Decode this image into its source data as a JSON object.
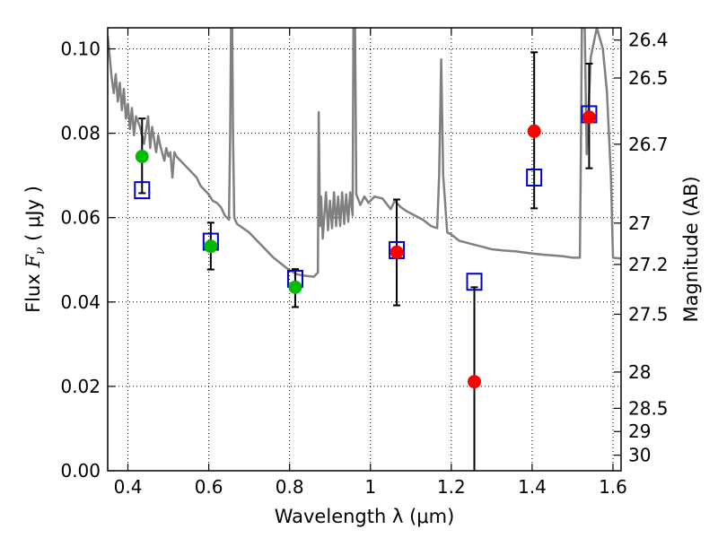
{
  "chart_data": {
    "type": "scatter",
    "title": "",
    "xlabel": "Wavelength  λ (μm)",
    "ylabel": "Flux  F_ν  ( μJy )",
    "ylabel_right": "Magnitude (AB)",
    "xlim": [
      0.35,
      1.62
    ],
    "ylim": [
      0.0,
      0.105
    ],
    "grid": true,
    "x_ticks": [
      0.4,
      0.6,
      0.8,
      1.0,
      1.2,
      1.4,
      1.6
    ],
    "x_tick_labels": [
      "0.4",
      "0.6",
      "0.8",
      "1",
      "1.2",
      "1.4",
      "1.6"
    ],
    "y_ticks": [
      0.0,
      0.02,
      0.04,
      0.06,
      0.08,
      0.1
    ],
    "y_tick_labels": [
      "0.00",
      "0.02",
      "0.04",
      "0.06",
      "0.08",
      "0.10"
    ],
    "right_ticks": [
      {
        "label": "26.4",
        "flux": 0.1021
      },
      {
        "label": "26.5",
        "flux": 0.0931
      },
      {
        "label": "26.7",
        "flux": 0.0774
      },
      {
        "label": "27",
        "flux": 0.0587
      },
      {
        "label": "27.2",
        "flux": 0.0489
      },
      {
        "label": "27.5",
        "flux": 0.0371
      },
      {
        "label": "28",
        "flux": 0.0234
      },
      {
        "label": "28.5",
        "flux": 0.0148
      },
      {
        "label": "29",
        "flux": 0.0093
      },
      {
        "label": "30",
        "flux": 0.0037
      }
    ],
    "series": [
      {
        "marker": "open-square",
        "color": "#0000cc",
        "points": [
          {
            "x": 0.435,
            "y": 0.0665
          },
          {
            "x": 0.605,
            "y": 0.0543
          },
          {
            "x": 0.814,
            "y": 0.0455
          },
          {
            "x": 1.065,
            "y": 0.0523
          },
          {
            "x": 1.257,
            "y": 0.0448
          },
          {
            "x": 1.405,
            "y": 0.0695
          },
          {
            "x": 1.541,
            "y": 0.0845
          }
        ]
      },
      {
        "marker": "filled-circle",
        "color": "#00bb00",
        "points": [
          {
            "x": 0.435,
            "y": 0.0745,
            "err_low": 0.0658,
            "err_high": 0.0835
          },
          {
            "x": 0.605,
            "y": 0.0532,
            "err_low": 0.0477,
            "err_high": 0.0588
          },
          {
            "x": 0.814,
            "y": 0.0435,
            "err_low": 0.0388,
            "err_high": 0.0478
          }
        ]
      },
      {
        "marker": "filled-circle",
        "color": "#ff0000",
        "points": [
          {
            "x": 1.065,
            "y": 0.0518,
            "err_low": 0.0392,
            "err_high": 0.0643
          },
          {
            "x": 1.257,
            "y": 0.0211,
            "err_low": 0.0,
            "err_high": 0.0435
          },
          {
            "x": 1.405,
            "y": 0.0805,
            "err_low": 0.0622,
            "err_high": 0.0992
          },
          {
            "x": 1.541,
            "y": 0.0838,
            "err_low": 0.0717,
            "err_high": 0.0965
          }
        ]
      },
      {
        "type": "line",
        "color": "#808080",
        "points": [
          [
            0.35,
            0.103
          ],
          [
            0.355,
            0.098
          ],
          [
            0.36,
            0.093
          ],
          [
            0.365,
            0.0895
          ],
          [
            0.37,
            0.094
          ],
          [
            0.375,
            0.0875
          ],
          [
            0.38,
            0.092
          ],
          [
            0.385,
            0.0855
          ],
          [
            0.39,
            0.0905
          ],
          [
            0.395,
            0.0835
          ],
          [
            0.4,
            0.087
          ],
          [
            0.405,
            0.081
          ],
          [
            0.41,
            0.086
          ],
          [
            0.415,
            0.0795
          ],
          [
            0.42,
            0.084
          ],
          [
            0.43,
            0.0815
          ],
          [
            0.44,
            0.0775
          ],
          [
            0.45,
            0.084
          ],
          [
            0.455,
            0.0765
          ],
          [
            0.46,
            0.0815
          ],
          [
            0.47,
            0.0755
          ],
          [
            0.475,
            0.0795
          ],
          [
            0.48,
            0.077
          ],
          [
            0.49,
            0.0735
          ],
          [
            0.495,
            0.0765
          ],
          [
            0.5,
            0.0745
          ],
          [
            0.505,
            0.0755
          ],
          [
            0.51,
            0.0695
          ],
          [
            0.515,
            0.0755
          ],
          [
            0.52,
            0.0745
          ],
          [
            0.54,
            0.0725
          ],
          [
            0.56,
            0.0705
          ],
          [
            0.57,
            0.0695
          ],
          [
            0.58,
            0.0675
          ],
          [
            0.59,
            0.0665
          ],
          [
            0.6,
            0.0655
          ],
          [
            0.61,
            0.064
          ],
          [
            0.62,
            0.0635
          ],
          [
            0.63,
            0.0625
          ],
          [
            0.64,
            0.0605
          ],
          [
            0.65,
            0.0595
          ],
          [
            0.653,
            0.08
          ],
          [
            0.655,
            0.105
          ],
          [
            0.658,
            0.105
          ],
          [
            0.66,
            0.08
          ],
          [
            0.663,
            0.06
          ],
          [
            0.67,
            0.0585
          ],
          [
            0.7,
            0.0565
          ],
          [
            0.72,
            0.0545
          ],
          [
            0.74,
            0.0525
          ],
          [
            0.76,
            0.0505
          ],
          [
            0.78,
            0.049
          ],
          [
            0.8,
            0.0475
          ],
          [
            0.82,
            0.0465
          ],
          [
            0.84,
            0.0462
          ],
          [
            0.86,
            0.046
          ],
          [
            0.87,
            0.047
          ],
          [
            0.872,
            0.085
          ],
          [
            0.875,
            0.058
          ],
          [
            0.878,
            0.065
          ],
          [
            0.882,
            0.055
          ],
          [
            0.89,
            0.066
          ],
          [
            0.895,
            0.057
          ],
          [
            0.9,
            0.064
          ],
          [
            0.905,
            0.0575
          ],
          [
            0.91,
            0.066
          ],
          [
            0.915,
            0.058
          ],
          [
            0.92,
            0.065
          ],
          [
            0.925,
            0.058
          ],
          [
            0.93,
            0.066
          ],
          [
            0.935,
            0.0585
          ],
          [
            0.94,
            0.0655
          ],
          [
            0.945,
            0.059
          ],
          [
            0.95,
            0.066
          ],
          [
            0.956,
            0.0605
          ],
          [
            0.958,
            0.105
          ],
          [
            0.962,
            0.105
          ],
          [
            0.965,
            0.0655
          ],
          [
            0.975,
            0.063
          ],
          [
            0.985,
            0.065
          ],
          [
            0.995,
            0.0635
          ],
          [
            1.01,
            0.065
          ],
          [
            1.03,
            0.0645
          ],
          [
            1.05,
            0.062
          ],
          [
            1.06,
            0.064
          ],
          [
            1.075,
            0.0625
          ],
          [
            1.09,
            0.0615
          ],
          [
            1.11,
            0.0605
          ],
          [
            1.13,
            0.0595
          ],
          [
            1.15,
            0.058
          ],
          [
            1.165,
            0.0575
          ],
          [
            1.17,
            0.07
          ],
          [
            1.175,
            0.0975
          ],
          [
            1.18,
            0.07
          ],
          [
            1.19,
            0.0565
          ],
          [
            1.2,
            0.056
          ],
          [
            1.22,
            0.0545
          ],
          [
            1.24,
            0.054
          ],
          [
            1.26,
            0.0535
          ],
          [
            1.28,
            0.053
          ],
          [
            1.3,
            0.0525
          ],
          [
            1.33,
            0.0522
          ],
          [
            1.36,
            0.052
          ],
          [
            1.4,
            0.0515
          ],
          [
            1.43,
            0.0512
          ],
          [
            1.46,
            0.051
          ],
          [
            1.48,
            0.0508
          ],
          [
            1.5,
            0.0505
          ],
          [
            1.518,
            0.0505
          ],
          [
            1.52,
            0.07
          ],
          [
            1.523,
            0.105
          ],
          [
            1.53,
            0.105
          ],
          [
            1.535,
            0.075
          ],
          [
            1.545,
            0.098
          ],
          [
            1.56,
            0.105
          ],
          [
            1.575,
            0.1
          ],
          [
            1.585,
            0.09
          ],
          [
            1.595,
            0.07
          ],
          [
            1.6,
            0.0505
          ],
          [
            1.62,
            0.0503
          ]
        ]
      }
    ]
  }
}
